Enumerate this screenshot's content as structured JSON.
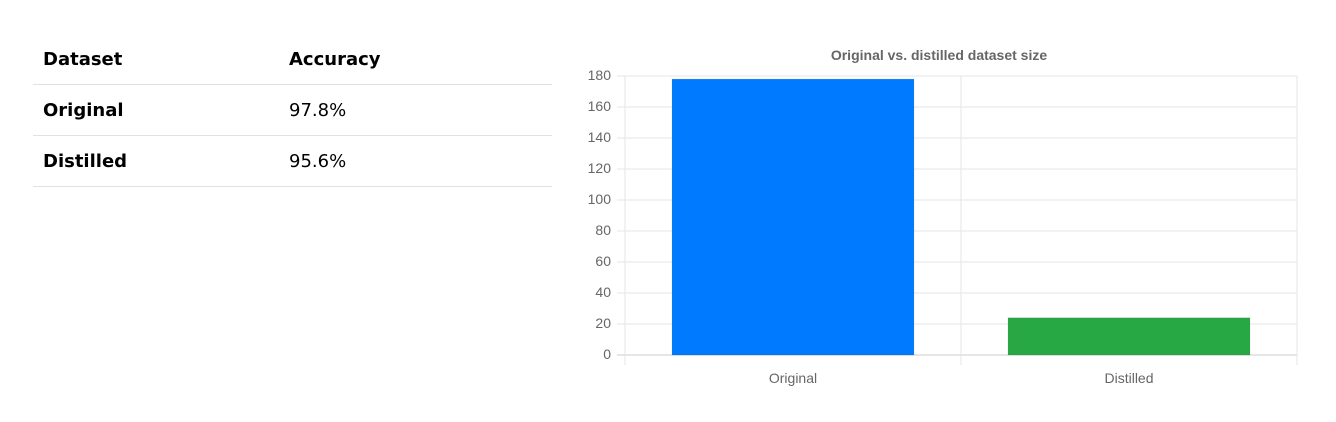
{
  "table": {
    "headers": [
      "Dataset",
      "Accuracy"
    ],
    "rows": [
      {
        "dataset": "Original",
        "accuracy": "97.8%"
      },
      {
        "dataset": "Distilled",
        "accuracy": "95.6%"
      }
    ]
  },
  "chart_data": {
    "type": "bar",
    "title": "Original vs. distilled dataset size",
    "categories": [
      "Original",
      "Distilled"
    ],
    "values": [
      178,
      24
    ],
    "colors": [
      "#007bff",
      "#28a745"
    ],
    "ylim": [
      0,
      180
    ],
    "yticks": [
      0,
      20,
      40,
      60,
      80,
      100,
      120,
      140,
      160,
      180
    ],
    "grid": true,
    "legend": "none"
  }
}
